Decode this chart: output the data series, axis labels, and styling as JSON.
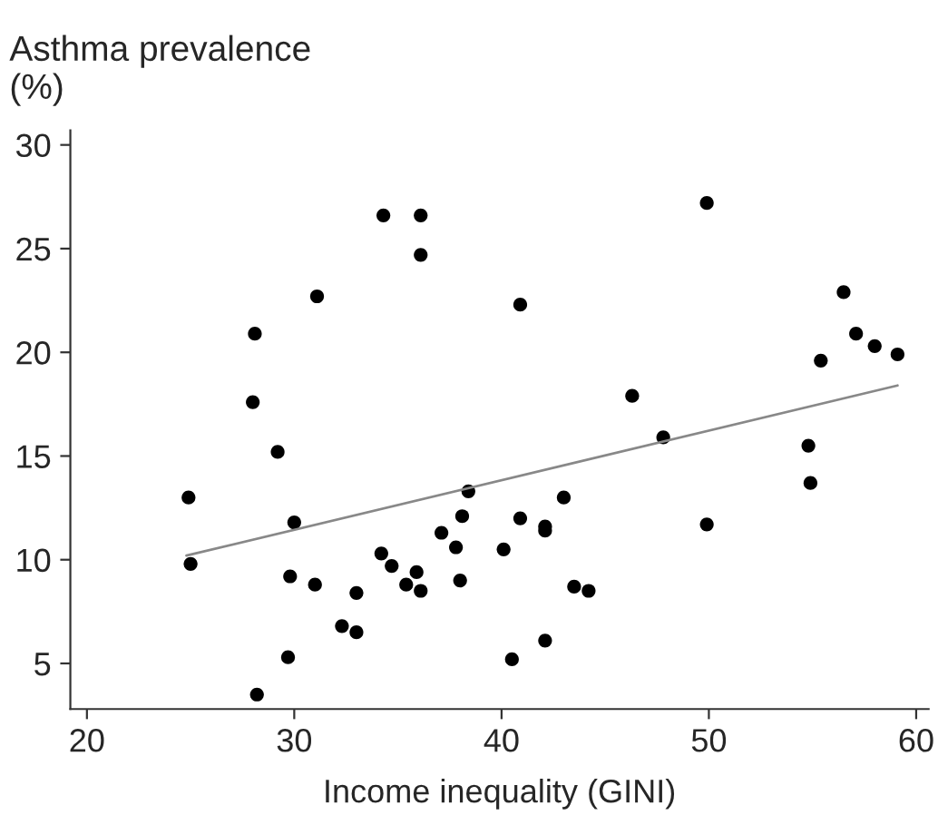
{
  "chart_data": {
    "type": "scatter",
    "ylabel": "Asthma prevalence\n(%)",
    "xlabel": "Income inequality (GINI)",
    "xlim": [
      19.2,
      60.6
    ],
    "ylim": [
      2.8,
      30.7
    ],
    "xticks": [
      20,
      30,
      40,
      50,
      60
    ],
    "yticks": [
      5,
      10,
      15,
      20,
      25,
      30
    ],
    "grid": false,
    "legend": false,
    "series": [
      {
        "color": "#000000",
        "marker": "circle",
        "x": [
          34.3,
          36.1,
          36.1,
          31.1,
          28.1,
          28.0,
          29.2,
          49.9,
          40.9,
          56.5,
          57.1,
          58.0,
          59.1,
          55.4,
          46.3,
          47.8,
          54.8,
          24.9,
          25.0,
          30.0,
          29.8,
          31.0,
          29.7,
          28.2,
          33.0,
          32.3,
          33.0,
          34.2,
          34.7,
          35.4,
          35.9,
          36.1,
          37.1,
          37.8,
          38.1,
          38.0,
          38.4,
          40.1,
          40.9,
          42.1,
          42.1,
          43.0,
          43.5,
          44.2,
          42.1,
          40.5,
          49.9,
          54.9
        ],
        "values": [
          26.6,
          26.6,
          24.7,
          22.7,
          20.9,
          17.6,
          15.2,
          27.2,
          22.3,
          22.9,
          20.9,
          20.3,
          19.9,
          19.6,
          17.9,
          15.9,
          15.5,
          13.0,
          9.8,
          11.8,
          9.2,
          8.8,
          5.3,
          3.5,
          8.4,
          6.8,
          6.5,
          10.3,
          9.7,
          8.8,
          9.4,
          8.5,
          11.3,
          10.6,
          12.1,
          9.0,
          13.3,
          10.5,
          12.0,
          11.6,
          11.4,
          13.0,
          8.7,
          8.5,
          6.1,
          5.2,
          11.7,
          13.7
        ]
      },
      {
        "type": "line",
        "color": "#888888",
        "marker": "none",
        "x": [
          24.8,
          59.1
        ],
        "values": [
          10.2,
          18.4
        ]
      }
    ]
  }
}
